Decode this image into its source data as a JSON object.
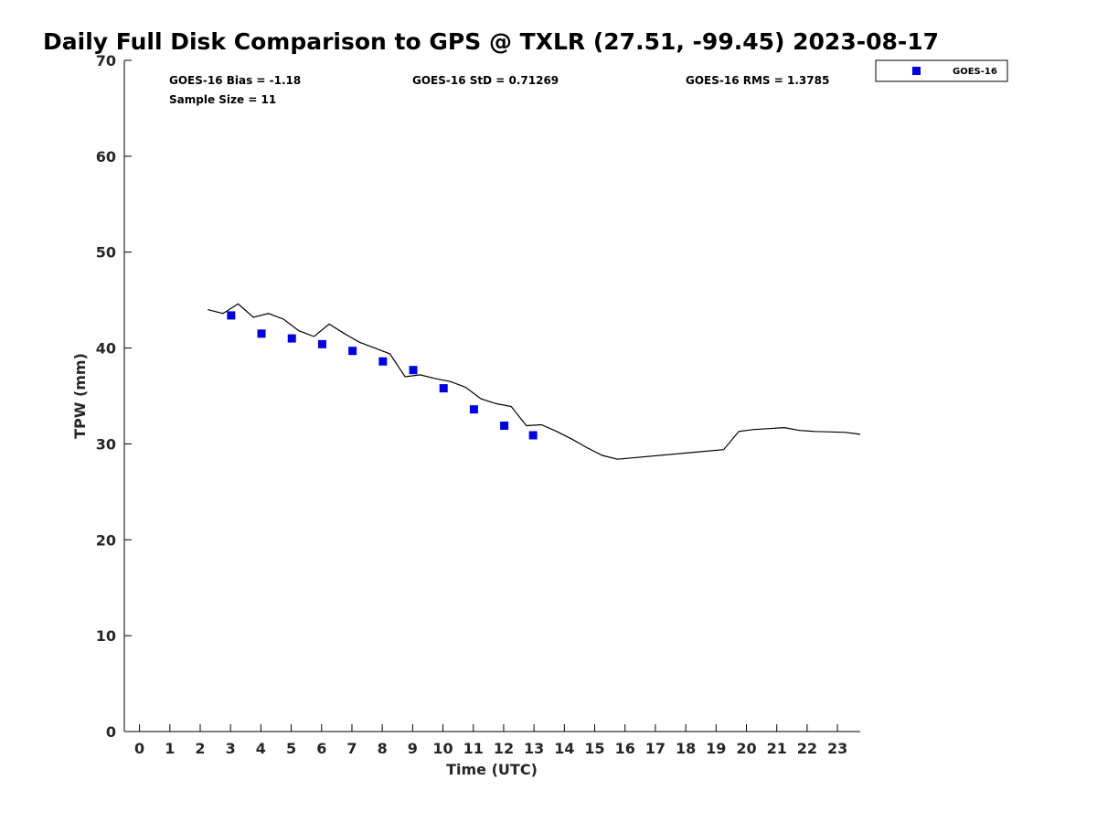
{
  "chart_data": {
    "type": "scatter",
    "title": "Daily Full Disk Comparison to GPS @ TXLR (27.51, -99.45) 2023-08-17",
    "xlabel": "Time (UTC)",
    "ylabel": "TPW (mm)",
    "xlim": [
      -0.5,
      23.75
    ],
    "ylim": [
      0,
      70
    ],
    "x_ticks": [
      0,
      1,
      2,
      3,
      4,
      5,
      6,
      7,
      8,
      9,
      10,
      11,
      12,
      13,
      14,
      15,
      16,
      17,
      18,
      19,
      20,
      21,
      22,
      23
    ],
    "x_tick_labels": [
      "0",
      "1",
      "2",
      "3",
      "4",
      "5",
      "6",
      "7",
      "8",
      "9",
      "10",
      "11",
      "12",
      "13",
      "14",
      "15",
      "16",
      "17",
      "18",
      "19",
      "20",
      "21",
      "22",
      "23"
    ],
    "y_ticks": [
      0,
      10,
      20,
      30,
      40,
      50,
      60,
      70
    ],
    "y_tick_labels": [
      "0",
      "10",
      "20",
      "30",
      "40",
      "50",
      "60",
      "70"
    ],
    "grid": false,
    "legend_position": "top-right",
    "stats": {
      "bias": "GOES-16 Bias = -1.18",
      "std": "GOES-16 StD = 0.71269",
      "rms": "GOES-16 RMS = 1.3785",
      "sample": "Sample Size = 11"
    },
    "series": [
      {
        "name": "GOES-16",
        "marker": "square",
        "color": "#0000dd",
        "x": [
          3.02,
          4.02,
          5.02,
          6.02,
          7.02,
          8.02,
          9.02,
          10.02,
          11.02,
          12.02,
          12.97
        ],
        "y": [
          43.4,
          41.5,
          41.0,
          40.4,
          39.7,
          38.6,
          37.7,
          35.8,
          33.6,
          31.9,
          30.9
        ]
      },
      {
        "line": true,
        "color": "#000000",
        "x": [
          2.25,
          2.75,
          3.25,
          3.75,
          4.25,
          4.75,
          5.25,
          5.75,
          6.25,
          6.75,
          7.25,
          7.75,
          8.25,
          8.75,
          9.25,
          9.75,
          10.25,
          10.75,
          11.25,
          11.75,
          12.25,
          12.75,
          13.25,
          13.75,
          14.25,
          14.75,
          15.25,
          15.75,
          19.25,
          19.75,
          20.25,
          20.75,
          21.25,
          21.75,
          22.25,
          23.25,
          23.75
        ],
        "y": [
          44.0,
          43.6,
          44.6,
          43.2,
          43.6,
          43.0,
          41.8,
          41.2,
          42.5,
          41.5,
          40.6,
          40.0,
          39.4,
          37.0,
          37.2,
          36.8,
          36.5,
          35.9,
          34.7,
          34.2,
          33.9,
          31.9,
          32.0,
          31.3,
          30.5,
          29.6,
          28.8,
          28.4,
          29.4,
          31.3,
          31.5,
          31.6,
          31.7,
          31.4,
          31.3,
          31.2,
          31.0
        ]
      }
    ]
  }
}
